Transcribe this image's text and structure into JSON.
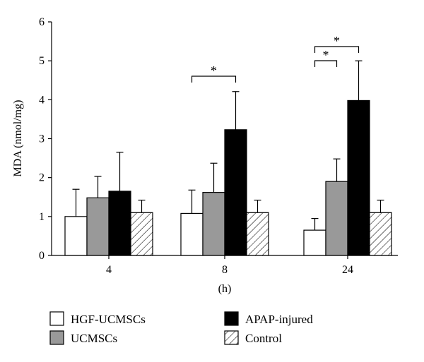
{
  "chart_data": {
    "type": "bar",
    "xlabel": "(h)",
    "ylabel": "MDA (nmol/mg)",
    "ylim": [
      0,
      6
    ],
    "yticks": [
      0,
      1,
      2,
      3,
      4,
      5,
      6
    ],
    "categories": [
      "4",
      "8",
      "24"
    ],
    "series": [
      {
        "name": "HGF-UCMSCs",
        "values": [
          1.0,
          1.08,
          0.65
        ],
        "errors": [
          0.7,
          0.6,
          0.3
        ],
        "fill": "#ffffff",
        "pattern": "none"
      },
      {
        "name": "UCMSCs",
        "values": [
          1.48,
          1.62,
          1.9
        ],
        "errors": [
          0.55,
          0.75,
          0.58
        ],
        "fill": "#999999",
        "pattern": "none"
      },
      {
        "name": "APAP-injured",
        "values": [
          1.65,
          3.23,
          3.98
        ],
        "errors": [
          1.0,
          0.98,
          1.02
        ],
        "fill": "#000000",
        "pattern": "none"
      },
      {
        "name": "Control",
        "values": [
          1.1,
          1.1,
          1.1
        ],
        "errors": [
          0.32,
          0.32,
          0.32
        ],
        "fill": "#ffffff",
        "pattern": "hatch"
      }
    ],
    "significance": [
      {
        "category": "8",
        "from_series": 0,
        "to_series": 2,
        "label": "*",
        "level": 0
      },
      {
        "category": "24",
        "from_series": 0,
        "to_series": 1,
        "label": "*",
        "level": 0
      },
      {
        "category": "24",
        "from_series": 0,
        "to_series": 2,
        "label": "*",
        "level": 1
      }
    ],
    "legend": {
      "placement": "bottom",
      "items": [
        {
          "label": "HGF-UCMSCs",
          "series": 0
        },
        {
          "label": "APAP-injured",
          "series": 2
        },
        {
          "label": "UCMSCs",
          "series": 1
        },
        {
          "label": "Control",
          "series": 3
        }
      ]
    }
  }
}
